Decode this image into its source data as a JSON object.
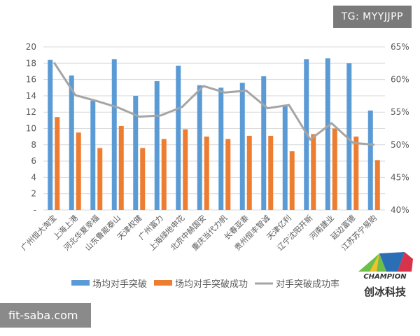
{
  "watermark_top": "TG: MYYJJPP",
  "watermark_bottom": "fit-saba.com",
  "logo": {
    "en": "CHAMPION",
    "cn": "创冰科技"
  },
  "chart_data": {
    "type": "bar",
    "categories": [
      "广州恒大淘宝",
      "上海上港",
      "河北华夏幸福",
      "山东鲁能泰山",
      "天津权健",
      "广州富力",
      "上海绿地申花",
      "北京中赫国安",
      "重庆当代力帆",
      "长春亚泰",
      "贵州恒丰智诚",
      "天津亿利",
      "辽宁沈阳开新",
      "河南建业",
      "延边富德",
      "江苏苏宁易购"
    ],
    "series": [
      {
        "name": "场均对手突破",
        "type": "bar",
        "axis": "left",
        "color": "#5b9bd5",
        "values": [
          18.4,
          16.5,
          13.4,
          18.5,
          14.0,
          15.8,
          17.7,
          15.3,
          15.0,
          15.6,
          16.4,
          12.9,
          18.5,
          18.6,
          18.0,
          12.2
        ]
      },
      {
        "name": "场均对手突破成功",
        "type": "bar",
        "axis": "left",
        "color": "#ed7d31",
        "values": [
          11.4,
          9.5,
          7.6,
          10.3,
          7.6,
          8.7,
          9.9,
          9.0,
          8.7,
          9.1,
          9.1,
          7.2,
          9.3,
          10.0,
          9.0,
          6.1
        ]
      },
      {
        "name": "对手突破成功率",
        "type": "line",
        "axis": "right",
        "color": "#a5a5a5",
        "values": [
          62.6,
          57.6,
          56.7,
          55.7,
          54.3,
          54.5,
          55.8,
          59.0,
          58.0,
          58.3,
          55.6,
          56.1,
          50.8,
          53.3,
          50.3,
          50.0
        ]
      }
    ],
    "ylim_left": [
      0,
      20
    ],
    "yticks_left": [
      "-",
      "2",
      "4",
      "6",
      "8",
      "10",
      "12",
      "14",
      "16",
      "18",
      "20"
    ],
    "ylim_right": [
      40,
      65
    ],
    "yticks_right": [
      "40%",
      "45%",
      "50%",
      "55%",
      "60%",
      "65%"
    ],
    "grid": true,
    "legend": "bottom"
  }
}
